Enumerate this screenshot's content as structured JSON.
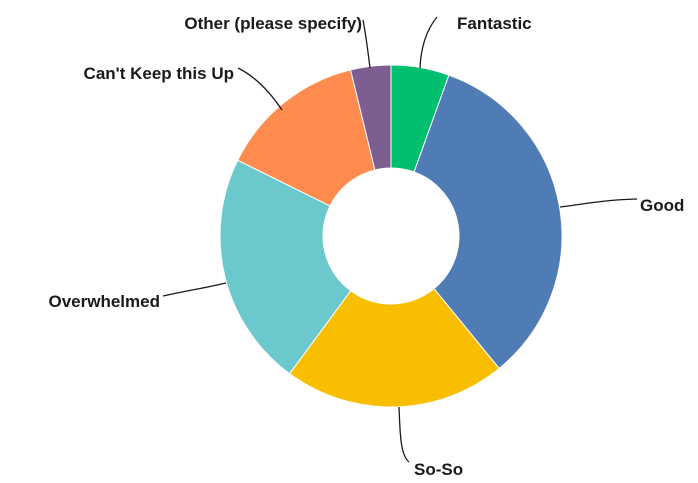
{
  "chart_data": {
    "type": "pie",
    "donut": true,
    "title": "",
    "slices": [
      {
        "label": "Fantastic",
        "value": 5.5,
        "color": "#00bf6f"
      },
      {
        "label": "Good",
        "value": 33.6,
        "color": "#507cb6"
      },
      {
        "label": "So-So",
        "value": 21.0,
        "color": "#f9be00"
      },
      {
        "label": "Overwhelmed",
        "value": 22.2,
        "color": "#6bc8cd"
      },
      {
        "label": "Can't Keep this Up",
        "value": 13.9,
        "color": "#ff8b4f"
      },
      {
        "label": "Other (please specify)",
        "value": 3.8,
        "color": "#7d5e90"
      }
    ]
  }
}
